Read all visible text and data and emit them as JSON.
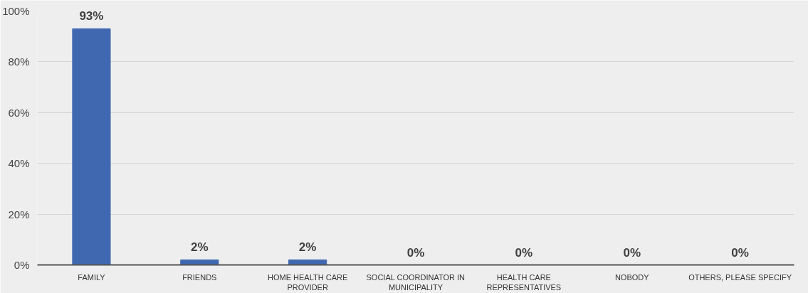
{
  "chart_data": {
    "type": "bar",
    "categories": [
      "FAMILY",
      "FRIENDS",
      "HOME HEALTH CARE PROVIDER",
      "SOCIAL COORDINATOR IN MUNICIPALITY",
      "HEALTH CARE REPRESENTATIVES",
      "NOBODY",
      "OTHERS, PLEASE SPECIFY"
    ],
    "values": [
      93,
      2,
      2,
      0,
      0,
      0,
      0
    ],
    "value_labels": [
      "93%",
      "2%",
      "2%",
      "0%",
      "0%",
      "0%",
      "0%"
    ],
    "color": "#4068b0",
    "ylim": [
      0,
      100
    ],
    "yticks": [
      {
        "value": 0,
        "label": "0%"
      },
      {
        "value": 20,
        "label": "20%"
      },
      {
        "value": 40,
        "label": "40%"
      },
      {
        "value": 60,
        "label": "60%"
      },
      {
        "value": 80,
        "label": "80%"
      },
      {
        "value": 100,
        "label": "100%"
      }
    ],
    "grid": "y"
  }
}
